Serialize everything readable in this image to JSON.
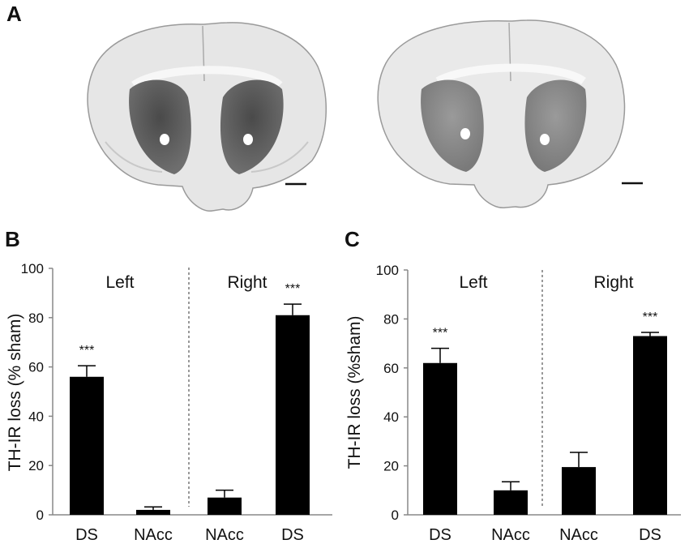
{
  "panel_a": {
    "label": "A",
    "images": [
      "brain-section-left",
      "brain-section-right"
    ]
  },
  "chart_data": [
    {
      "type": "bar",
      "panel_label": "B",
      "ylabel": "TH-IR loss (% sham)",
      "ylim": [
        0,
        100
      ],
      "yticks": [
        0,
        20,
        40,
        60,
        80,
        100
      ],
      "groups": [
        "Left",
        "Right"
      ],
      "categories": [
        "DS",
        "NAcc",
        "NAcc",
        "DS"
      ],
      "values": [
        56,
        2,
        7,
        81
      ],
      "errors": [
        4.5,
        1.2,
        3,
        4.5
      ],
      "significance": [
        "***",
        "",
        "",
        "***"
      ],
      "bar_color": "#000000"
    },
    {
      "type": "bar",
      "panel_label": "C",
      "ylabel": "TH-IR loss (%sham)",
      "ylim": [
        0,
        100
      ],
      "yticks": [
        0,
        20,
        40,
        60,
        80,
        100
      ],
      "groups": [
        "Left",
        "Right"
      ],
      "categories": [
        "DS",
        "NAcc",
        "NAcc",
        "DS"
      ],
      "values": [
        62,
        10,
        19.5,
        73
      ],
      "errors": [
        6,
        3.5,
        6,
        1.5
      ],
      "significance": [
        "***",
        "",
        "",
        "***"
      ],
      "bar_color": "#000000"
    }
  ]
}
